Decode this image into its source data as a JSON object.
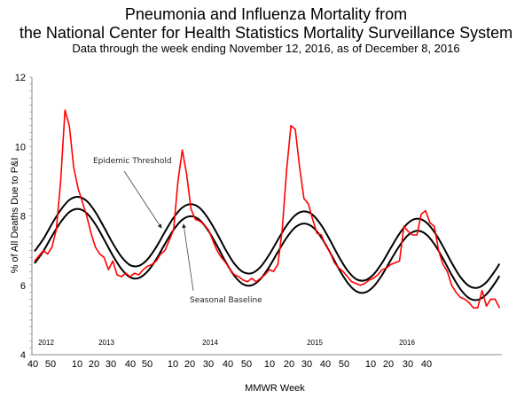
{
  "chart_data": {
    "type": "line",
    "title": "Pneumonia and Influenza Mortality from",
    "title_line2": "the National Center for Health Statistics Mortality Surveillance System",
    "subtitle": "Data through the week ending November 12, 2016, as of December 8, 2016",
    "xlabel": "MMWR Week",
    "ylabel": "% of All Deaths Due to P&I",
    "ylim": [
      4,
      12
    ],
    "y_ticks": [
      "4",
      "6",
      "8",
      "10",
      "12"
    ],
    "x_tick_labels": [
      "40",
      "50",
      "10",
      "20",
      "30",
      "40",
      "50",
      "10",
      "20",
      "30",
      "40",
      "50",
      "10",
      "20",
      "30",
      "40",
      "50",
      "10",
      "20",
      "30",
      "40"
    ],
    "year_labels": [
      "2012",
      "2013",
      "2014",
      "2015",
      "2016"
    ],
    "grid": false,
    "legend": "none (inline annotations)",
    "annotations": {
      "threshold": "Epidemic Threshold",
      "baseline": "Seasonal Baseline"
    },
    "colors": {
      "observed": "#ff0000",
      "baseline": "#000000",
      "threshold": "#000000"
    },
    "observed": {
      "x": [
        "2012-40",
        "2012-42",
        "2012-44",
        "2012-46",
        "2012-48",
        "2012-50",
        "2012-52",
        "2013-2",
        "2013-4",
        "2013-6",
        "2013-8",
        "2013-10",
        "2013-12",
        "2013-14",
        "2013-16",
        "2013-18",
        "2013-20",
        "2013-22",
        "2013-24",
        "2013-26",
        "2013-28",
        "2013-30",
        "2013-32",
        "2013-34",
        "2013-36",
        "2013-38",
        "2013-40",
        "2013-42",
        "2013-44",
        "2013-46",
        "2013-48",
        "2013-50",
        "2013-52",
        "2014-2",
        "2014-4",
        "2014-6",
        "2014-8",
        "2014-10",
        "2014-12",
        "2014-14",
        "2014-16",
        "2014-18",
        "2014-20",
        "2014-22",
        "2014-24",
        "2014-26",
        "2014-28",
        "2014-30",
        "2014-32",
        "2014-34",
        "2014-36",
        "2014-38",
        "2014-40",
        "2014-42",
        "2014-44",
        "2014-46",
        "2014-48",
        "2014-50",
        "2014-52",
        "2015-1",
        "2015-3",
        "2015-5",
        "2015-7",
        "2015-9",
        "2015-11",
        "2015-13",
        "2015-15",
        "2015-17",
        "2015-19",
        "2015-21",
        "2015-23",
        "2015-25",
        "2015-27",
        "2015-29",
        "2015-31",
        "2015-33",
        "2015-35",
        "2015-37",
        "2015-39",
        "2015-41",
        "2015-43",
        "2015-45",
        "2015-47",
        "2015-49",
        "2015-51",
        "2016-1",
        "2016-3",
        "2016-5",
        "2016-7",
        "2016-9",
        "2016-11",
        "2016-13",
        "2016-15",
        "2016-17",
        "2016-19",
        "2016-21",
        "2016-23",
        "2016-25",
        "2016-27",
        "2016-29",
        "2016-31",
        "2016-33",
        "2016-35",
        "2016-37",
        "2016-39",
        "2016-41",
        "2016-43",
        "2016-45"
      ],
      "values": [
        6.7,
        6.85,
        7.0,
        6.9,
        7.1,
        7.6,
        9.0,
        11.05,
        10.6,
        9.4,
        8.8,
        8.4,
        8.0,
        7.5,
        7.1,
        6.9,
        6.8,
        6.45,
        6.7,
        6.3,
        6.25,
        6.35,
        6.25,
        6.35,
        6.3,
        6.45,
        6.55,
        6.6,
        6.7,
        6.9,
        7.0,
        7.3,
        7.6,
        9.0,
        9.9,
        9.2,
        8.2,
        7.9,
        7.85,
        7.75,
        7.6,
        7.3,
        7.0,
        6.8,
        6.65,
        6.45,
        6.3,
        6.25,
        6.15,
        6.1,
        6.2,
        6.1,
        6.2,
        6.3,
        6.45,
        6.4,
        6.6,
        7.6,
        9.3,
        10.6,
        10.5,
        9.4,
        8.5,
        8.35,
        7.9,
        7.5,
        7.45,
        7.15,
        6.95,
        6.65,
        6.5,
        6.4,
        6.25,
        6.1,
        6.05,
        6.0,
        6.05,
        6.15,
        6.2,
        6.3,
        6.45,
        6.5,
        6.6,
        6.65,
        6.7,
        7.7,
        7.55,
        7.45,
        7.45,
        8.05,
        8.15,
        7.8,
        7.7,
        7.0,
        6.6,
        6.4,
        6.0,
        5.8,
        5.65,
        5.6,
        5.5,
        5.35,
        5.35,
        5.85,
        5.4,
        5.6,
        5.6,
        5.35
      ]
    },
    "curves_x": [
      "2012-40",
      "2012-44",
      "2012-48",
      "2012-52",
      "2013-4",
      "2013-8",
      "2013-12",
      "2013-16",
      "2013-20",
      "2013-24",
      "2013-28",
      "2013-32",
      "2013-36",
      "2013-40",
      "2013-44",
      "2013-48",
      "2013-52",
      "2014-4",
      "2014-8",
      "2014-12",
      "2014-16",
      "2014-20",
      "2014-24",
      "2014-28",
      "2014-32",
      "2014-36",
      "2014-40",
      "2014-44",
      "2014-48",
      "2014-52",
      "2015-3",
      "2015-7",
      "2015-11",
      "2015-15",
      "2015-19",
      "2015-23",
      "2015-27",
      "2015-31",
      "2015-35",
      "2015-39",
      "2015-43",
      "2015-47",
      "2015-51",
      "2016-3",
      "2016-7",
      "2016-11",
      "2016-15",
      "2016-19",
      "2016-23",
      "2016-27",
      "2016-31",
      "2016-35",
      "2016-39",
      "2016-43",
      "2016-45"
    ],
    "baseline": [
      6.63,
      6.98,
      7.42,
      7.82,
      8.11,
      8.2,
      8.08,
      7.76,
      7.32,
      6.86,
      6.47,
      6.23,
      6.21,
      6.4,
      6.75,
      7.19,
      7.6,
      7.89,
      7.99,
      7.88,
      7.57,
      7.14,
      6.67,
      6.27,
      6.03,
      6.0,
      6.18,
      6.53,
      6.96,
      7.37,
      7.67,
      7.78,
      7.68,
      7.38,
      6.95,
      6.48,
      6.08,
      5.83,
      5.79,
      5.96,
      6.3,
      6.73,
      7.14,
      7.45,
      7.57,
      7.48,
      7.19,
      6.77,
      6.3,
      5.89,
      5.63,
      5.58,
      5.74,
      6.07,
      6.27
    ],
    "threshold": [
      6.98,
      7.33,
      7.77,
      8.17,
      8.46,
      8.55,
      8.43,
      8.11,
      7.67,
      7.21,
      6.82,
      6.58,
      6.56,
      6.75,
      7.1,
      7.54,
      7.95,
      8.24,
      8.34,
      8.23,
      7.92,
      7.49,
      7.02,
      6.62,
      6.38,
      6.35,
      6.53,
      6.88,
      7.31,
      7.72,
      8.02,
      8.13,
      8.03,
      7.73,
      7.3,
      6.83,
      6.43,
      6.18,
      6.14,
      6.31,
      6.65,
      7.08,
      7.49,
      7.8,
      7.92,
      7.83,
      7.54,
      7.12,
      6.65,
      6.24,
      5.98,
      5.93,
      6.09,
      6.42,
      6.62
    ]
  }
}
